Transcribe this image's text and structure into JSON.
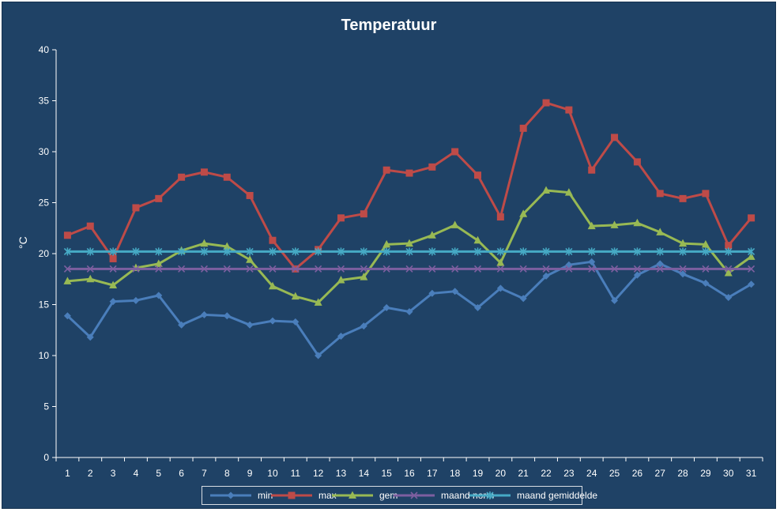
{
  "chart_data": {
    "type": "line",
    "title": "Temperatuur",
    "xlabel": "",
    "ylabel": "°C",
    "ylim": [
      0,
      40
    ],
    "y_ticks": [
      0,
      5,
      10,
      15,
      20,
      25,
      30,
      35,
      40
    ],
    "categories": [
      "1",
      "2",
      "3",
      "4",
      "5",
      "6",
      "7",
      "8",
      "9",
      "10",
      "11",
      "12",
      "13",
      "14",
      "15",
      "16",
      "17",
      "18",
      "19",
      "20",
      "21",
      "22",
      "23",
      "24",
      "25",
      "26",
      "27",
      "28",
      "29",
      "30",
      "31"
    ],
    "grid": false,
    "legend_position": "bottom",
    "series": [
      {
        "name": "min",
        "color": "#4a7ebb",
        "marker": "diamond",
        "values": [
          13.9,
          11.8,
          15.3,
          15.4,
          15.9,
          13.0,
          14.0,
          13.9,
          13.0,
          13.4,
          13.3,
          10.0,
          11.9,
          12.9,
          14.7,
          14.3,
          16.1,
          16.3,
          14.7,
          16.6,
          15.6,
          17.8,
          18.9,
          19.2,
          15.4,
          17.9,
          19.0,
          18.0,
          17.1,
          15.7,
          17.0
        ]
      },
      {
        "name": "max",
        "color": "#be4b48",
        "marker": "square",
        "values": [
          21.8,
          22.7,
          19.5,
          24.5,
          25.4,
          27.5,
          28.0,
          27.5,
          25.7,
          21.3,
          18.5,
          20.4,
          23.5,
          23.9,
          28.2,
          27.9,
          28.5,
          30.0,
          27.7,
          23.6,
          32.3,
          34.8,
          34.1,
          28.2,
          31.4,
          29.0,
          25.9,
          25.4,
          25.9,
          20.8,
          23.5
        ]
      },
      {
        "name": "gem",
        "color": "#98b954",
        "marker": "triangle",
        "values": [
          17.3,
          17.5,
          16.9,
          18.6,
          19.0,
          20.3,
          21.0,
          20.7,
          19.4,
          16.8,
          15.8,
          15.2,
          17.4,
          17.7,
          20.9,
          21.0,
          21.8,
          22.8,
          21.3,
          19.1,
          23.9,
          26.2,
          26.0,
          22.7,
          22.8,
          23.0,
          22.1,
          21.0,
          20.9,
          18.1,
          19.7
        ]
      },
      {
        "name": "maand norm",
        "color": "#7d5fa0",
        "marker": "x",
        "values": [
          18.5,
          18.5,
          18.5,
          18.5,
          18.5,
          18.5,
          18.5,
          18.5,
          18.5,
          18.5,
          18.5,
          18.5,
          18.5,
          18.5,
          18.5,
          18.5,
          18.5,
          18.5,
          18.5,
          18.5,
          18.5,
          18.5,
          18.5,
          18.5,
          18.5,
          18.5,
          18.5,
          18.5,
          18.5,
          18.5,
          18.5
        ]
      },
      {
        "name": "maand gemiddelde",
        "color": "#46aac5",
        "marker": "asterisk",
        "values": [
          20.2,
          20.2,
          20.2,
          20.2,
          20.2,
          20.2,
          20.2,
          20.2,
          20.2,
          20.2,
          20.2,
          20.2,
          20.2,
          20.2,
          20.2,
          20.2,
          20.2,
          20.2,
          20.2,
          20.2,
          20.2,
          20.2,
          20.2,
          20.2,
          20.2,
          20.2,
          20.2,
          20.2,
          20.2,
          20.2,
          20.2
        ]
      }
    ]
  }
}
